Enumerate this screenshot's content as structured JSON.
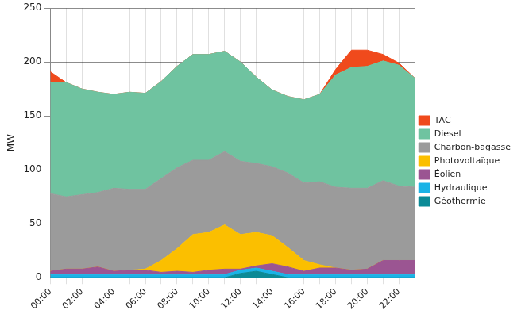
{
  "chart_data": {
    "type": "area",
    "stacked": true,
    "grid": true,
    "legend": "right",
    "y_label": "MW",
    "categories": [
      "00:00",
      null,
      "02:00",
      null,
      "04:00",
      null,
      "06:00",
      null,
      "08:00",
      null,
      "10:00",
      null,
      "12:00",
      null,
      "14:00",
      null,
      "16:00",
      null,
      "18:00",
      null,
      "20:00",
      null,
      "22:00",
      null
    ],
    "ylim": [
      0,
      250
    ],
    "yticks": [
      0,
      50,
      100,
      150,
      200,
      250
    ],
    "series": [
      {
        "name": "TAC",
        "color": "#f04a1c",
        "values": [
          10,
          0,
          0,
          0,
          0,
          0,
          0,
          0,
          0,
          0,
          0,
          0,
          0,
          0,
          0,
          0,
          0,
          0,
          5,
          16,
          15,
          6,
          2,
          0
        ]
      },
      {
        "name": "Diesel",
        "color": "#6fc3a0",
        "values": [
          103,
          106,
          98,
          93,
          87,
          90,
          89,
          90,
          94,
          98,
          98,
          93,
          92,
          80,
          71,
          71,
          77,
          81,
          104,
          112,
          113,
          111,
          112,
          101
        ]
      },
      {
        "name": "Charbon-bagasse",
        "color": "#9b9b9b",
        "values": [
          72,
          67,
          69,
          69,
          77,
          75,
          74,
          76,
          75,
          69,
          67,
          68,
          68,
          64,
          64,
          69,
          72,
          77,
          75,
          76,
          75,
          74,
          69,
          68
        ]
      },
      {
        "name": "Photovoltaïque",
        "color": "#fbbf00",
        "values": [
          0,
          0,
          0,
          0,
          0,
          0,
          1,
          11,
          21,
          35,
          35,
          41,
          32,
          31,
          26,
          18,
          10,
          3,
          0,
          0,
          0,
          0,
          0,
          0
        ]
      },
      {
        "name": "Éolien",
        "color": "#9b5592",
        "values": [
          3,
          5,
          5,
          7,
          3,
          4,
          4,
          2,
          3,
          2,
          4,
          5,
          1,
          2,
          7,
          7,
          3,
          6,
          6,
          4,
          5,
          13,
          13,
          13
        ]
      },
      {
        "name": "Hydraulique",
        "color": "#1ab3e6",
        "values": [
          3,
          3,
          3,
          3,
          3,
          3,
          3,
          3,
          3,
          3,
          3,
          3,
          3,
          3,
          3,
          3,
          3,
          3,
          3,
          3,
          3,
          3,
          3,
          3
        ]
      },
      {
        "name": "Géothermie",
        "color": "#0b8a96",
        "values": [
          0,
          0,
          0,
          0,
          0,
          0,
          0,
          0,
          0,
          0,
          0,
          0,
          4,
          6,
          3,
          0,
          0,
          0,
          0,
          0,
          0,
          0,
          0,
          0
        ]
      }
    ]
  }
}
